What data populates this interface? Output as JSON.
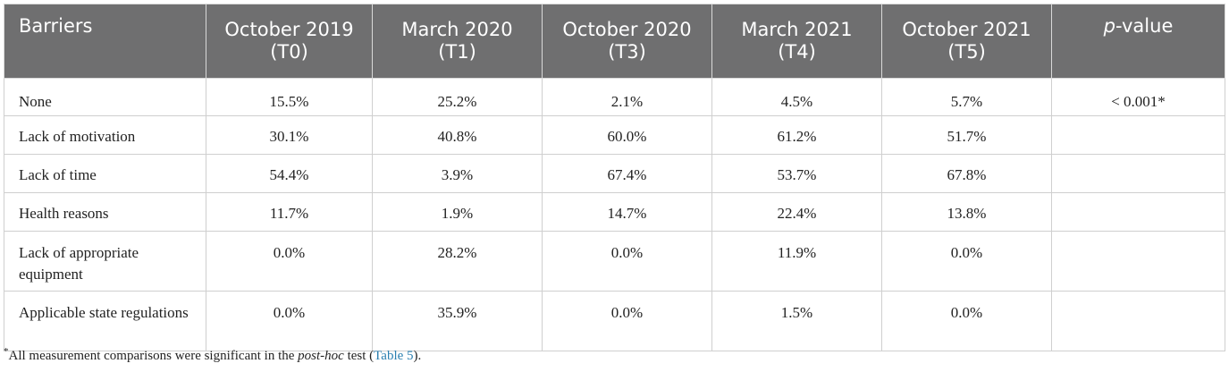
{
  "table": {
    "headers": [
      "Barriers",
      "October 2019 (T0)",
      "March 2020 (T1)",
      "October 2020 (T3)",
      "March 2021 (T4)",
      "October 2021 (T5)"
    ],
    "pvalue_header_italic": "p",
    "pvalue_header_rest": "-value",
    "rows": [
      {
        "label": "None",
        "values": [
          "15.5%",
          "25.2%",
          "2.1%",
          "4.5%",
          "5.7%"
        ],
        "p": "< 0.001*"
      },
      {
        "label": "Lack of motivation",
        "values": [
          "30.1%",
          "40.8%",
          "60.0%",
          "61.2%",
          "51.7%"
        ],
        "p": ""
      },
      {
        "label": "Lack of time",
        "values": [
          "54.4%",
          "3.9%",
          "67.4%",
          "53.7%",
          "67.8%"
        ],
        "p": ""
      },
      {
        "label": "Health reasons",
        "values": [
          "11.7%",
          "1.9%",
          "14.7%",
          "22.4%",
          "13.8%"
        ],
        "p": ""
      },
      {
        "label": "Lack of appropriate equipment",
        "values": [
          "0.0%",
          "28.2%",
          "0.0%",
          "11.9%",
          "0.0%"
        ],
        "p": ""
      },
      {
        "label": "Applicable state regulations",
        "values": [
          "0.0%",
          "35.9%",
          "0.0%",
          "1.5%",
          "0.0%"
        ],
        "p": ""
      }
    ]
  },
  "footnote": {
    "marker": "*",
    "text_before": "All measurement comparisons were significant in the ",
    "italic": "post-hoc",
    "text_after": " test (",
    "link": "Table 5",
    "close": ")."
  },
  "colors": {
    "header_bg": "#6f6f70",
    "link": "#2a7fb0"
  }
}
